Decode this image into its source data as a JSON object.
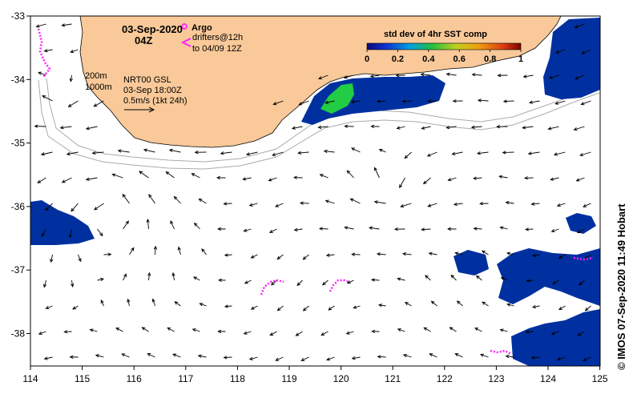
{
  "map": {
    "date_label": "03-Sep-2020",
    "time_label": "04Z",
    "argo_label": "Argo",
    "drifters_label": "drifters@12h",
    "drifters_to_label": "to 04/09 12Z",
    "isobath_200": "200m",
    "isobath_1000": "1000m",
    "model_label": "NRT00 GSL",
    "model_time": "03-Sep 18:00Z",
    "scale_label": "0.5m/s (1kt 24h)",
    "credit": "© IMOS 07-Sep-2020 11:49 Hobart",
    "lon_ticks": [
      "114",
      "115",
      "116",
      "117",
      "118",
      "119",
      "120",
      "121",
      "122",
      "123",
      "124",
      "125"
    ],
    "lat_ticks": [
      "-33",
      "-34",
      "-35",
      "-36",
      "-37",
      "-38"
    ],
    "colorbar": {
      "title": "std dev of 4hr SST comp",
      "ticks": [
        "0",
        "0.2",
        "0.4",
        "0.6",
        "0.8",
        "1"
      ]
    },
    "colors": {
      "land": "#f9c999",
      "argo": "#ff22ff",
      "sst_main": "#0030a0",
      "sst_high": "#22cc44"
    }
  }
}
